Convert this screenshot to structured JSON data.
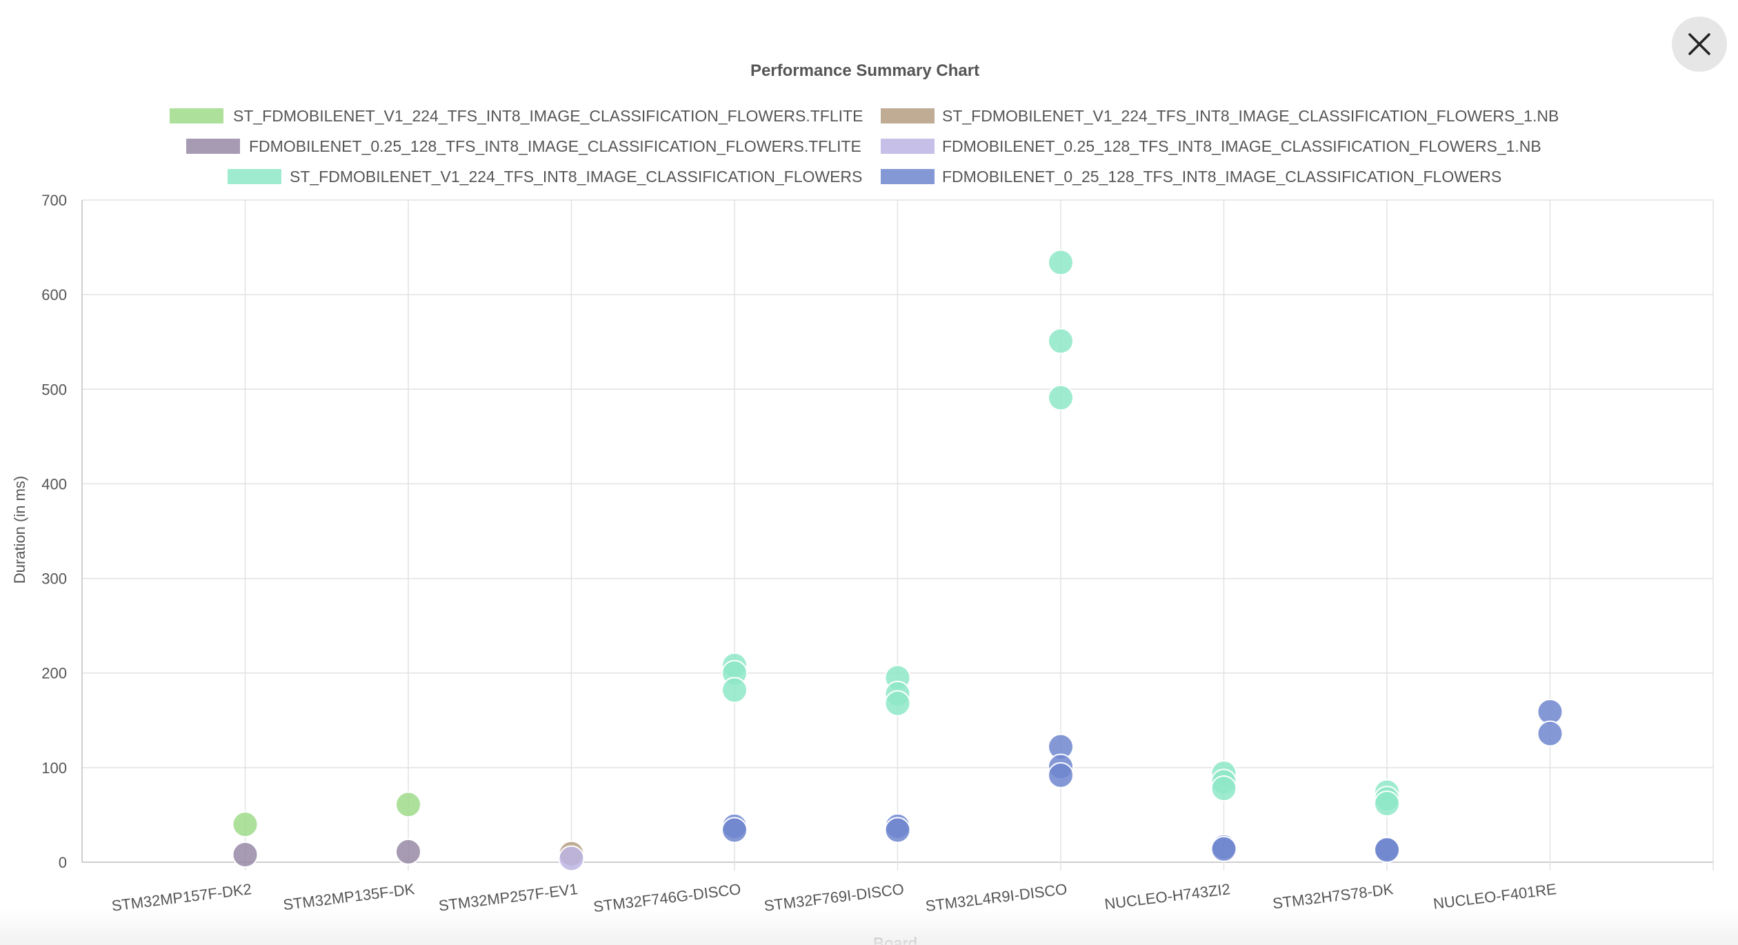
{
  "close_button": {
    "icon": "close-icon"
  },
  "chart_data": {
    "type": "scatter",
    "title": "Performance Summary Chart",
    "xlabel": "Board",
    "ylabel": "Duration (in ms)",
    "ylim": [
      0,
      700
    ],
    "yticks": [
      0,
      100,
      200,
      300,
      400,
      500,
      600,
      700
    ],
    "categories": [
      "STM32MP157F-DK2",
      "STM32MP135F-DK",
      "STM32MP257F-EV1",
      "STM32F746G-DISCO",
      "STM32F769I-DISCO",
      "STM32L4R9I-DISCO",
      "NUCLEO-H743ZI2",
      "STM32H7S78-DK",
      "NUCLEO-F401RE"
    ],
    "grid": true,
    "legend_position": "top",
    "series": [
      {
        "name": "ST_FDMOBILENET_V1_224_TFS_INT8_IMAGE_CLASSIFICATION_FLOWERS.TFLITE",
        "color": "#9edb8a",
        "points": [
          {
            "x": "STM32MP157F-DK2",
            "y": 40
          },
          {
            "x": "STM32MP135F-DK",
            "y": 61
          }
        ]
      },
      {
        "name": "ST_FDMOBILENET_V1_224_TFS_INT8_IMAGE_CLASSIFICATION_FLOWERS_1.NB",
        "color": "#b59d83",
        "points": [
          {
            "x": "STM32MP257F-EV1",
            "y": 9
          }
        ]
      },
      {
        "name": "FDMOBILENET_0.25_128_TFS_INT8_IMAGE_CLASSIFICATION_FLOWERS.TFLITE",
        "color": "#968aa6",
        "points": [
          {
            "x": "STM32MP157F-DK2",
            "y": 8
          },
          {
            "x": "STM32MP135F-DK",
            "y": 11
          }
        ]
      },
      {
        "name": "FDMOBILENET_0.25_128_TFS_INT8_IMAGE_CLASSIFICATION_FLOWERS_1.NB",
        "color": "#bcb4e3",
        "points": [
          {
            "x": "STM32MP257F-EV1",
            "y": 4
          }
        ]
      },
      {
        "name": "ST_FDMOBILENET_V1_224_TFS_INT8_IMAGE_CLASSIFICATION_FLOWERS",
        "color": "#8ee8c8",
        "points": [
          {
            "x": "STM32F746G-DISCO",
            "y": 208
          },
          {
            "x": "STM32F746G-DISCO",
            "y": 200
          },
          {
            "x": "STM32F746G-DISCO",
            "y": 182
          },
          {
            "x": "STM32F769I-DISCO",
            "y": 195
          },
          {
            "x": "STM32F769I-DISCO",
            "y": 178
          },
          {
            "x": "STM32F769I-DISCO",
            "y": 168
          },
          {
            "x": "STM32L4R9I-DISCO",
            "y": 634
          },
          {
            "x": "STM32L4R9I-DISCO",
            "y": 551
          },
          {
            "x": "STM32L4R9I-DISCO",
            "y": 491
          },
          {
            "x": "NUCLEO-H743ZI2",
            "y": 94
          },
          {
            "x": "NUCLEO-H743ZI2",
            "y": 85
          },
          {
            "x": "NUCLEO-H743ZI2",
            "y": 78
          },
          {
            "x": "STM32H7S78-DK",
            "y": 74
          },
          {
            "x": "STM32H7S78-DK",
            "y": 67
          },
          {
            "x": "STM32H7S78-DK",
            "y": 62
          }
        ]
      },
      {
        "name": "FDMOBILENET_0_25_128_TFS_INT8_IMAGE_CLASSIFICATION_FLOWERS",
        "color": "#6f86cf",
        "points": [
          {
            "x": "STM32F746G-DISCO",
            "y": 38
          },
          {
            "x": "STM32F746G-DISCO",
            "y": 34
          },
          {
            "x": "STM32F769I-DISCO",
            "y": 38
          },
          {
            "x": "STM32F769I-DISCO",
            "y": 34
          },
          {
            "x": "STM32L4R9I-DISCO",
            "y": 122
          },
          {
            "x": "STM32L4R9I-DISCO",
            "y": 101
          },
          {
            "x": "STM32L4R9I-DISCO",
            "y": 92
          },
          {
            "x": "NUCLEO-H743ZI2",
            "y": 16
          },
          {
            "x": "NUCLEO-H743ZI2",
            "y": 14
          },
          {
            "x": "STM32H7S78-DK",
            "y": 14
          },
          {
            "x": "STM32H7S78-DK",
            "y": 13
          },
          {
            "x": "NUCLEO-F401RE",
            "y": 159
          },
          {
            "x": "NUCLEO-F401RE",
            "y": 136
          }
        ]
      }
    ]
  }
}
